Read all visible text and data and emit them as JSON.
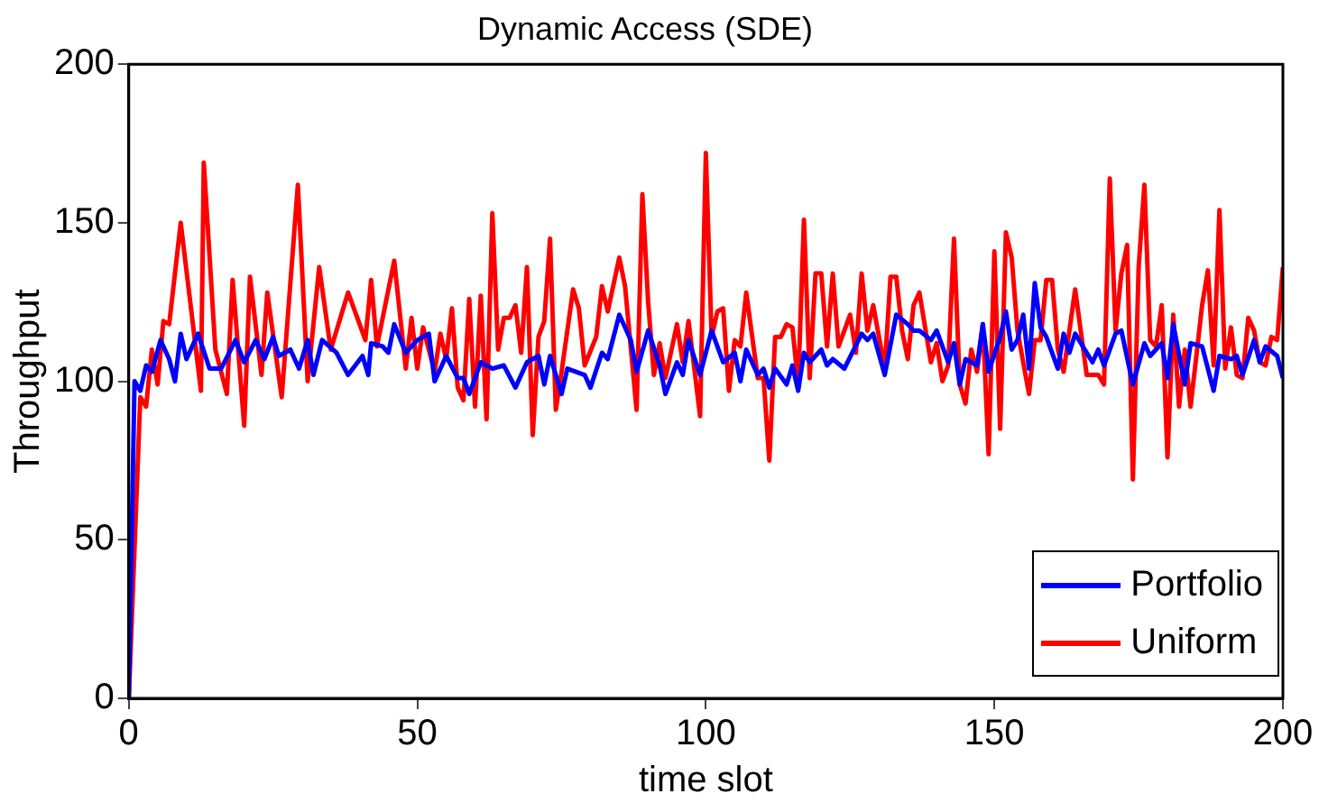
{
  "chart_data": {
    "type": "line",
    "title": "Dynamic Access (SDE)",
    "xlabel": "time slot",
    "ylabel": "Throughput",
    "xlim": [
      0,
      200
    ],
    "xticks": [
      0,
      50,
      100,
      150,
      200
    ],
    "ylim": [
      0,
      200
    ],
    "yticks": [
      0,
      50,
      100,
      150,
      200
    ],
    "grid": false,
    "legend": "bottom right",
    "marker": "none",
    "line_style": "solid",
    "series": [
      {
        "name": "Portfolio",
        "color": "#0000ff",
        "x": [
          0,
          1,
          2,
          3,
          4,
          5.5,
          7,
          8,
          9,
          10,
          12,
          14,
          16,
          18.5,
          20,
          22,
          23.5,
          25,
          26,
          28,
          29.5,
          31,
          32,
          33.5,
          36,
          38,
          40.5,
          41.5,
          42,
          44,
          45,
          46,
          48,
          50,
          52,
          53,
          55,
          57,
          58,
          59,
          61,
          63,
          65,
          67,
          69,
          71,
          72,
          73,
          75,
          76,
          79,
          80,
          82,
          83,
          85,
          87,
          88,
          90,
          92,
          93,
          95,
          96,
          97,
          99,
          101,
          103,
          105,
          106,
          107,
          109,
          110,
          111,
          112,
          114,
          115,
          116,
          117,
          118,
          120,
          121,
          122,
          124,
          127,
          128,
          129,
          131,
          133,
          135,
          136,
          137,
          139,
          140,
          142,
          143,
          144,
          145,
          147,
          148,
          149,
          151,
          152,
          153,
          154,
          155,
          156,
          157,
          158,
          159,
          161,
          162,
          163,
          164,
          165,
          167,
          168,
          169,
          171,
          172,
          174,
          176,
          177,
          179,
          180,
          181,
          183,
          184,
          186,
          188,
          189,
          191,
          192,
          193,
          195,
          196,
          197,
          199,
          200
        ],
        "values": [
          0,
          100,
          97,
          105,
          103,
          113,
          107,
          100,
          115,
          107,
          115,
          104,
          104,
          113,
          106,
          113,
          107,
          114,
          108,
          110,
          104,
          113,
          102,
          113,
          109,
          102,
          108,
          102,
          112,
          111,
          109,
          118,
          109,
          113,
          115,
          100,
          108,
          101,
          101,
          96,
          106,
          104,
          105,
          98,
          106,
          108,
          99,
          108,
          96,
          104,
          102,
          98,
          109,
          107,
          121,
          113,
          103,
          116,
          105,
          96,
          106,
          102,
          113,
          102,
          116,
          106,
          109,
          100,
          110,
          102,
          104,
          98,
          104,
          99,
          105,
          97,
          109,
          106,
          110,
          105,
          107,
          104,
          115,
          113,
          115,
          102,
          121,
          118,
          116,
          116,
          113,
          116,
          106,
          112,
          99,
          107,
          105,
          118,
          103,
          114,
          122,
          110,
          113,
          121,
          104,
          131,
          117,
          114,
          104,
          115,
          109,
          115,
          112,
          106,
          110,
          105,
          115,
          116,
          99,
          112,
          108,
          112,
          101,
          118,
          99,
          112,
          111,
          97,
          108,
          107,
          108,
          102,
          113,
          106,
          111,
          108,
          101
        ]
      },
      {
        "name": "Uniform",
        "color": "#ff0000",
        "x": [
          0,
          2,
          3,
          4,
          5,
          6,
          7,
          9,
          12.5,
          13,
          15,
          17,
          18,
          20,
          21,
          23,
          24,
          26.5,
          29.3,
          31,
          33,
          35,
          38,
          41,
          42,
          43,
          46,
          48,
          49,
          50,
          51,
          53,
          54,
          55,
          56,
          57,
          58,
          59,
          60,
          61,
          62,
          63,
          64,
          65,
          66,
          67,
          68,
          69,
          70,
          71,
          72,
          73,
          74,
          75,
          77,
          78,
          79,
          81,
          82,
          83,
          85,
          86,
          88,
          89,
          90,
          91,
          92,
          93,
          95,
          96,
          97,
          99,
          100,
          101,
          102,
          103,
          104,
          105,
          106,
          107,
          109,
          110,
          111,
          112,
          113,
          114,
          115,
          116,
          117,
          118,
          119,
          120,
          121,
          122,
          123,
          125,
          126,
          127,
          128,
          129,
          131,
          132,
          133,
          134,
          135,
          136,
          137,
          139,
          140,
          141,
          142,
          143,
          144,
          145,
          146,
          147,
          148,
          149,
          150,
          151,
          152,
          153,
          154,
          156,
          157,
          158,
          159,
          160,
          161,
          162,
          164,
          166,
          167,
          168,
          169,
          170,
          171,
          172,
          173,
          174,
          175,
          176,
          177,
          178,
          179,
          180,
          181,
          182,
          183,
          184,
          186,
          187,
          188,
          189,
          190,
          191,
          192,
          193,
          194,
          195,
          196,
          197,
          198,
          199,
          200
        ],
        "values": [
          0,
          95,
          92,
          110,
          99,
          119,
          118,
          150,
          97,
          169,
          110,
          96,
          132,
          86,
          133,
          102,
          128,
          95,
          162,
          100,
          136,
          110,
          128,
          113,
          132,
          111,
          138,
          104,
          120,
          104,
          117,
          103,
          115,
          107,
          123,
          98,
          94,
          126,
          92,
          127,
          88,
          153,
          110,
          120,
          120,
          124,
          109,
          136,
          83,
          114,
          119,
          145,
          91,
          103,
          129,
          123,
          105,
          114,
          130,
          122,
          139,
          130,
          91,
          159,
          125,
          102,
          112,
          101,
          118,
          106,
          119,
          89,
          172,
          114,
          122,
          123,
          97,
          113,
          111,
          128,
          101,
          101,
          75,
          114,
          114,
          118,
          117,
          99,
          151,
          101,
          134,
          134,
          111,
          134,
          111,
          121,
          109,
          134,
          116,
          124,
          104,
          133,
          133,
          116,
          107,
          124,
          128,
          106,
          112,
          100,
          105,
          145,
          99,
          93,
          110,
          103,
          118,
          77,
          141,
          85,
          147,
          139,
          116,
          96,
          113,
          113,
          132,
          132,
          110,
          103,
          129,
          102,
          102,
          102,
          99,
          164,
          116,
          134,
          143,
          69,
          136,
          162,
          113,
          111,
          124,
          76,
          121,
          92,
          110,
          92,
          124,
          135,
          105,
          154,
          104,
          117,
          102,
          101,
          120,
          116,
          106,
          105,
          114,
          113,
          136
        ]
      }
    ]
  }
}
